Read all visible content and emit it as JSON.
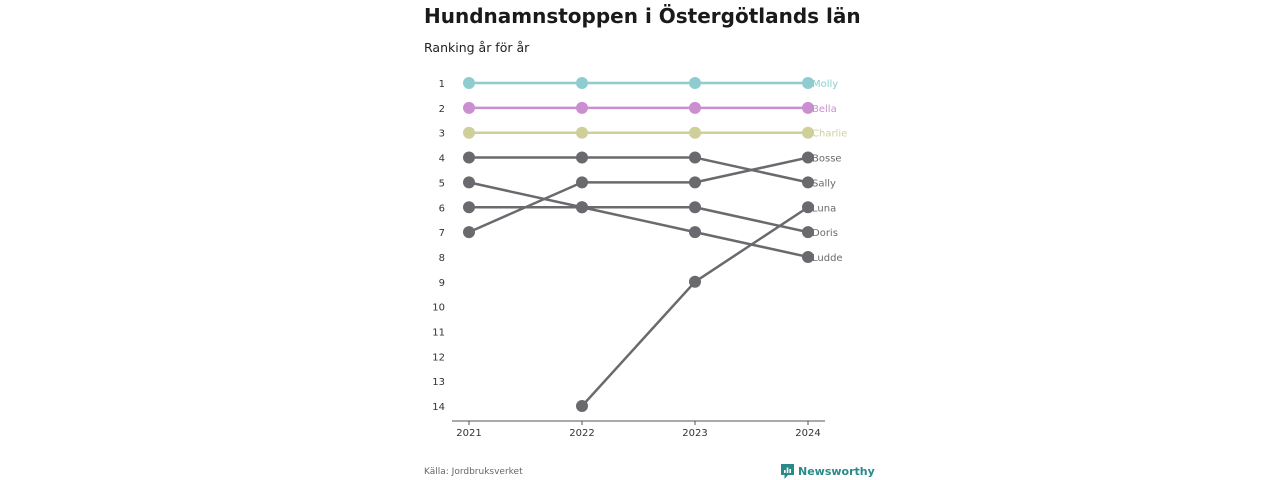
{
  "title": "Hundnamnstoppen i Östergötlands län",
  "subtitle": "Ranking år för år",
  "source": "Källa: Jordbruksverket",
  "brand": "Newsworthy",
  "colors": {
    "Molly": "#8ecdcf",
    "Bella": "#c98fd1",
    "Charlie": "#cfcf9a",
    "other": "#6a6a6e",
    "brand": "#2a8a8a"
  },
  "chart_data": {
    "type": "line",
    "title": "Hundnamnstoppen i Östergötlands län",
    "subtitle": "Ranking år för år",
    "x": [
      "2021",
      "2022",
      "2023",
      "2024"
    ],
    "y_ticks": [
      "1",
      "2",
      "3",
      "4",
      "5",
      "6",
      "7",
      "8",
      "9",
      "10",
      "11",
      "12",
      "13",
      "14"
    ],
    "ylim": [
      1,
      14
    ],
    "y_inverted": true,
    "grid": false,
    "legend": "direct labels at right end of lines",
    "series": [
      {
        "name": "Molly",
        "values": [
          1,
          1,
          1,
          1
        ]
      },
      {
        "name": "Bella",
        "values": [
          2,
          2,
          2,
          2
        ]
      },
      {
        "name": "Charlie",
        "values": [
          3,
          3,
          3,
          3
        ]
      },
      {
        "name": "Bosse",
        "values": [
          7,
          5,
          5,
          4
        ]
      },
      {
        "name": "Sally",
        "values": [
          4,
          4,
          4,
          5
        ]
      },
      {
        "name": "Luna",
        "values": [
          null,
          14,
          9,
          6
        ]
      },
      {
        "name": "Doris",
        "values": [
          6,
          6,
          6,
          7
        ]
      },
      {
        "name": "Ludde",
        "values": [
          5,
          6,
          7,
          8
        ]
      }
    ]
  }
}
